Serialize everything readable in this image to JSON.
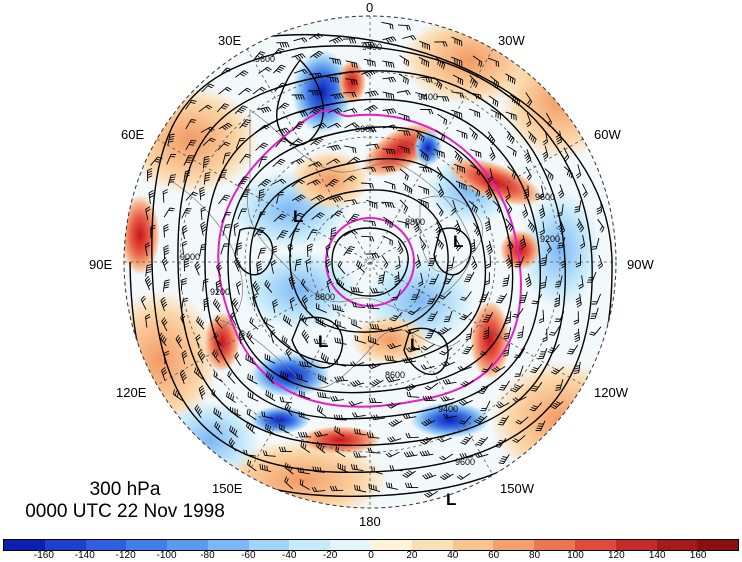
{
  "map": {
    "level": "300 hPa",
    "datetime": "0000 UTC 22 Nov 1998",
    "lon_labels": [
      {
        "id": "lon-0",
        "text": "0"
      },
      {
        "id": "lon-30w",
        "text": "30W"
      },
      {
        "id": "lon-60w",
        "text": "60W"
      },
      {
        "id": "lon-90w",
        "text": "90W"
      },
      {
        "id": "lon-120w",
        "text": "120W"
      },
      {
        "id": "lon-150w",
        "text": "150W"
      },
      {
        "id": "lon-180",
        "text": "180"
      },
      {
        "id": "lon-150e",
        "text": "150E"
      },
      {
        "id": "lon-120e",
        "text": "120E"
      },
      {
        "id": "lon-90e",
        "text": "90E"
      },
      {
        "id": "lon-60e",
        "text": "60E"
      },
      {
        "id": "lon-30e",
        "text": "30E"
      }
    ],
    "contour_labels": [
      "9400",
      "9600",
      "8600",
      "8800",
      "9200",
      "9000",
      "8800",
      "9600",
      "9400",
      "9600",
      "9400",
      "8600",
      "9200"
    ],
    "low_symbol": "L"
  },
  "colorbar": {
    "ticks": [
      "-160",
      "-140",
      "-120",
      "-100",
      "-80",
      "-60",
      "-40",
      "-20",
      "0",
      "20",
      "40",
      "60",
      "80",
      "100",
      "120",
      "140",
      "160"
    ],
    "colors": [
      "#0b1fb3",
      "#1f3fcf",
      "#2f5fe0",
      "#3f7fe8",
      "#5a9bf0",
      "#7cb8f5",
      "#a2d3f8",
      "#c8ebfa",
      "#e4f6fb",
      "#fdf3d8",
      "#fbe0b5",
      "#f8c490",
      "#f3a06c",
      "#ec7552",
      "#e04a3c",
      "#c72a2a",
      "#a61a1a",
      "#8a0f0f"
    ]
  }
}
